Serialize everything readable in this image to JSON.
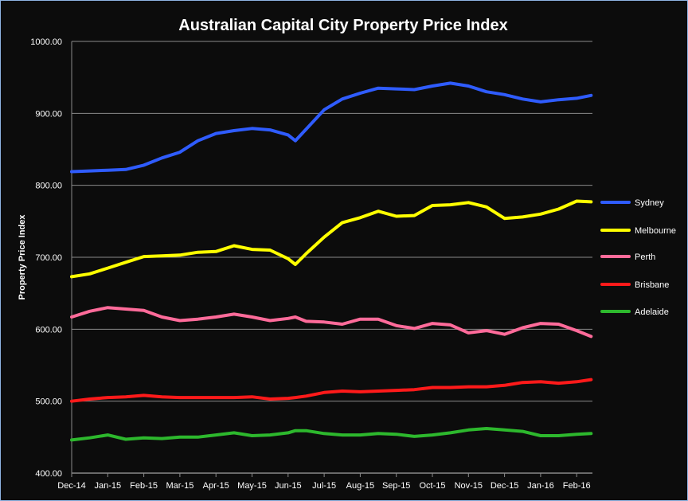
{
  "chart_data": {
    "type": "line",
    "title": "Australian Capital City Property Price Index",
    "xlabel": "",
    "ylabel": "Property Price Index",
    "ylim": [
      400,
      1000
    ],
    "yticks": [
      "400.00",
      "500.00",
      "600.00",
      "700.00",
      "800.00",
      "900.00",
      "1000.00"
    ],
    "ytick_values": [
      400,
      500,
      600,
      700,
      800,
      900,
      1000
    ],
    "categories": [
      "Dec-14",
      "Jan-15",
      "Feb-15",
      "Mar-15",
      "Apr-15",
      "May-15",
      "Jun-15",
      "Jul-15",
      "Aug-15",
      "Sep-15",
      "Oct-15",
      "Nov-15",
      "Dec-15",
      "Jan-16",
      "Feb-16"
    ],
    "x_unit": "months since Dec-14",
    "x": [
      0,
      0.5,
      1,
      1.5,
      2,
      2.5,
      3,
      3.5,
      4,
      4.5,
      5,
      5.5,
      6,
      6.2,
      6.5,
      7,
      7.5,
      8,
      8.5,
      9,
      9.5,
      10,
      10.5,
      11,
      11.5,
      12,
      12.5,
      13,
      13.5,
      14,
      14.4
    ],
    "grid": true,
    "legend_position": "right",
    "series": [
      {
        "name": "Sydney",
        "color": "#2f5cff",
        "values": [
          819,
          820,
          821,
          822,
          828,
          838,
          846,
          862,
          872,
          876,
          879,
          877,
          870,
          862,
          878,
          905,
          920,
          928,
          935,
          934,
          933,
          938,
          942,
          938,
          930,
          926,
          920,
          916,
          919,
          921,
          925
        ]
      },
      {
        "name": "Melbourne",
        "color": "#ffff00",
        "values": [
          673,
          677,
          685,
          693,
          701,
          702,
          703,
          707,
          708,
          716,
          711,
          710,
          698,
          690,
          705,
          728,
          748,
          755,
          764,
          757,
          758,
          772,
          773,
          776,
          770,
          754,
          756,
          760,
          767,
          778,
          777
        ]
      },
      {
        "name": "Perth",
        "color": "#ff6b9a",
        "values": [
          617,
          625,
          630,
          628,
          626,
          617,
          612,
          614,
          617,
          621,
          617,
          612,
          615,
          617,
          611,
          610,
          607,
          614,
          614,
          605,
          601,
          608,
          606,
          595,
          598,
          593,
          602,
          608,
          607,
          598,
          590
        ]
      },
      {
        "name": "Brisbane",
        "color": "#ff1a1a",
        "values": [
          500,
          503,
          505,
          506,
          508,
          506,
          505,
          505,
          505,
          505,
          506,
          503,
          504,
          505,
          507,
          512,
          514,
          513,
          514,
          515,
          516,
          519,
          519,
          520,
          520,
          522,
          526,
          527,
          525,
          527,
          530
        ]
      },
      {
        "name": "Adelaide",
        "color": "#2db82d",
        "values": [
          446,
          449,
          453,
          447,
          449,
          448,
          450,
          450,
          453,
          456,
          452,
          453,
          456,
          459,
          459,
          455,
          453,
          453,
          455,
          454,
          451,
          453,
          456,
          460,
          462,
          460,
          458,
          452,
          452,
          454,
          455
        ]
      }
    ]
  }
}
